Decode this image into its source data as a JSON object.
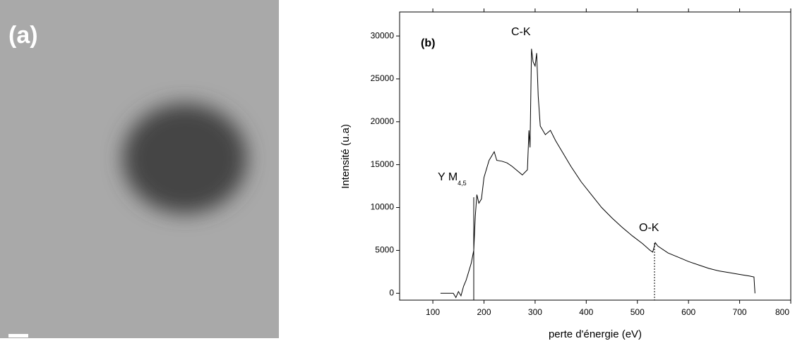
{
  "panel_a": {
    "label": "(a)"
  },
  "chart_data": {
    "type": "line",
    "panel_label": "(b)",
    "x_label": "perte d'énergie (eV)",
    "y_label": "Intensité (u.a)",
    "annotations": {
      "carbon": "C-K",
      "yttrium": "Y M",
      "yttrium_sub": "4,5",
      "oxygen": "O-K"
    },
    "color": "#000000",
    "x": [
      115,
      140,
      145,
      150,
      155,
      160,
      165,
      170,
      175,
      180,
      183,
      186,
      190,
      195,
      200,
      210,
      220,
      225,
      235,
      245,
      255,
      265,
      275,
      285,
      288,
      290,
      293,
      296,
      300,
      303,
      306,
      310,
      315,
      320,
      330,
      340,
      350,
      370,
      390,
      410,
      430,
      450,
      470,
      490,
      510,
      525,
      530,
      535,
      540,
      560,
      580,
      600,
      620,
      640,
      660,
      680,
      700,
      720,
      728,
      730
    ],
    "values": [
      0,
      0,
      -500,
      200,
      -300,
      800,
      1500,
      2500,
      3500,
      5000,
      9000,
      11500,
      10500,
      11000,
      13500,
      15500,
      16500,
      15500,
      15400,
      15200,
      14800,
      14300,
      13800,
      14400,
      19000,
      17000,
      28500,
      27000,
      26500,
      28000,
      23000,
      19500,
      19000,
      18500,
      19000,
      17800,
      16800,
      14800,
      13000,
      11500,
      10000,
      8800,
      7700,
      6700,
      5800,
      5000,
      4800,
      5900,
      5500,
      4700,
      4200,
      3700,
      3300,
      2900,
      2600,
      2400,
      2200,
      2000,
      1900,
      0
    ],
    "xlim": [
      35,
      800
    ],
    "xticks": [
      100,
      200,
      300,
      400,
      500,
      600,
      700,
      800
    ],
    "ylim": [
      -800,
      32800
    ],
    "yticks": [
      0,
      5000,
      10000,
      15000,
      20000,
      25000,
      30000
    ]
  }
}
